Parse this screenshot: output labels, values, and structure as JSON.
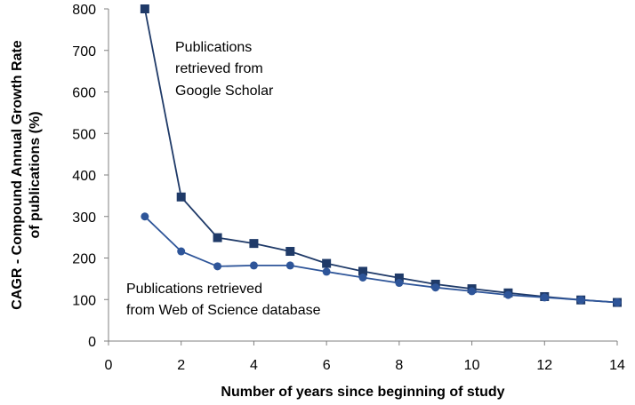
{
  "chart_data": {
    "type": "line",
    "xlabel": "Number of years since beginning of study",
    "ylabel_lines": [
      "CAGR - Compound Annual Growth Rate",
      "of publications (%)"
    ],
    "xlim": [
      0,
      14
    ],
    "ylim": [
      0,
      800
    ],
    "x_ticks": [
      "0",
      "2",
      "4",
      "6",
      "8",
      "10",
      "12",
      "14"
    ],
    "y_ticks": [
      "0",
      "100",
      "200",
      "300",
      "400",
      "500",
      "600",
      "700",
      "800"
    ],
    "grid": false,
    "legend": "none",
    "series": [
      {
        "marker": "square",
        "color": "#1f3a68",
        "x": [
          1,
          2,
          3,
          4,
          5,
          6,
          7,
          8,
          9,
          10,
          11,
          12,
          13,
          14
        ],
        "values": [
          800,
          347,
          249,
          235,
          216,
          187,
          168,
          152,
          137,
          126,
          116,
          107,
          99,
          93
        ]
      },
      {
        "marker": "circle",
        "color": "#2e5599",
        "x": [
          1,
          2,
          3,
          4,
          5,
          6,
          7,
          8,
          9,
          10,
          11,
          12,
          13,
          14
        ],
        "values": [
          300,
          216,
          180,
          182,
          182,
          167,
          153,
          140,
          129,
          120,
          111,
          105,
          99,
          93
        ]
      }
    ],
    "annotations": [
      {
        "lines": [
          "Publications",
          "retrieved from",
          "Google Scholar"
        ]
      },
      {
        "lines": [
          "Publications  retrieved",
          "from Web of Science database"
        ]
      }
    ]
  }
}
